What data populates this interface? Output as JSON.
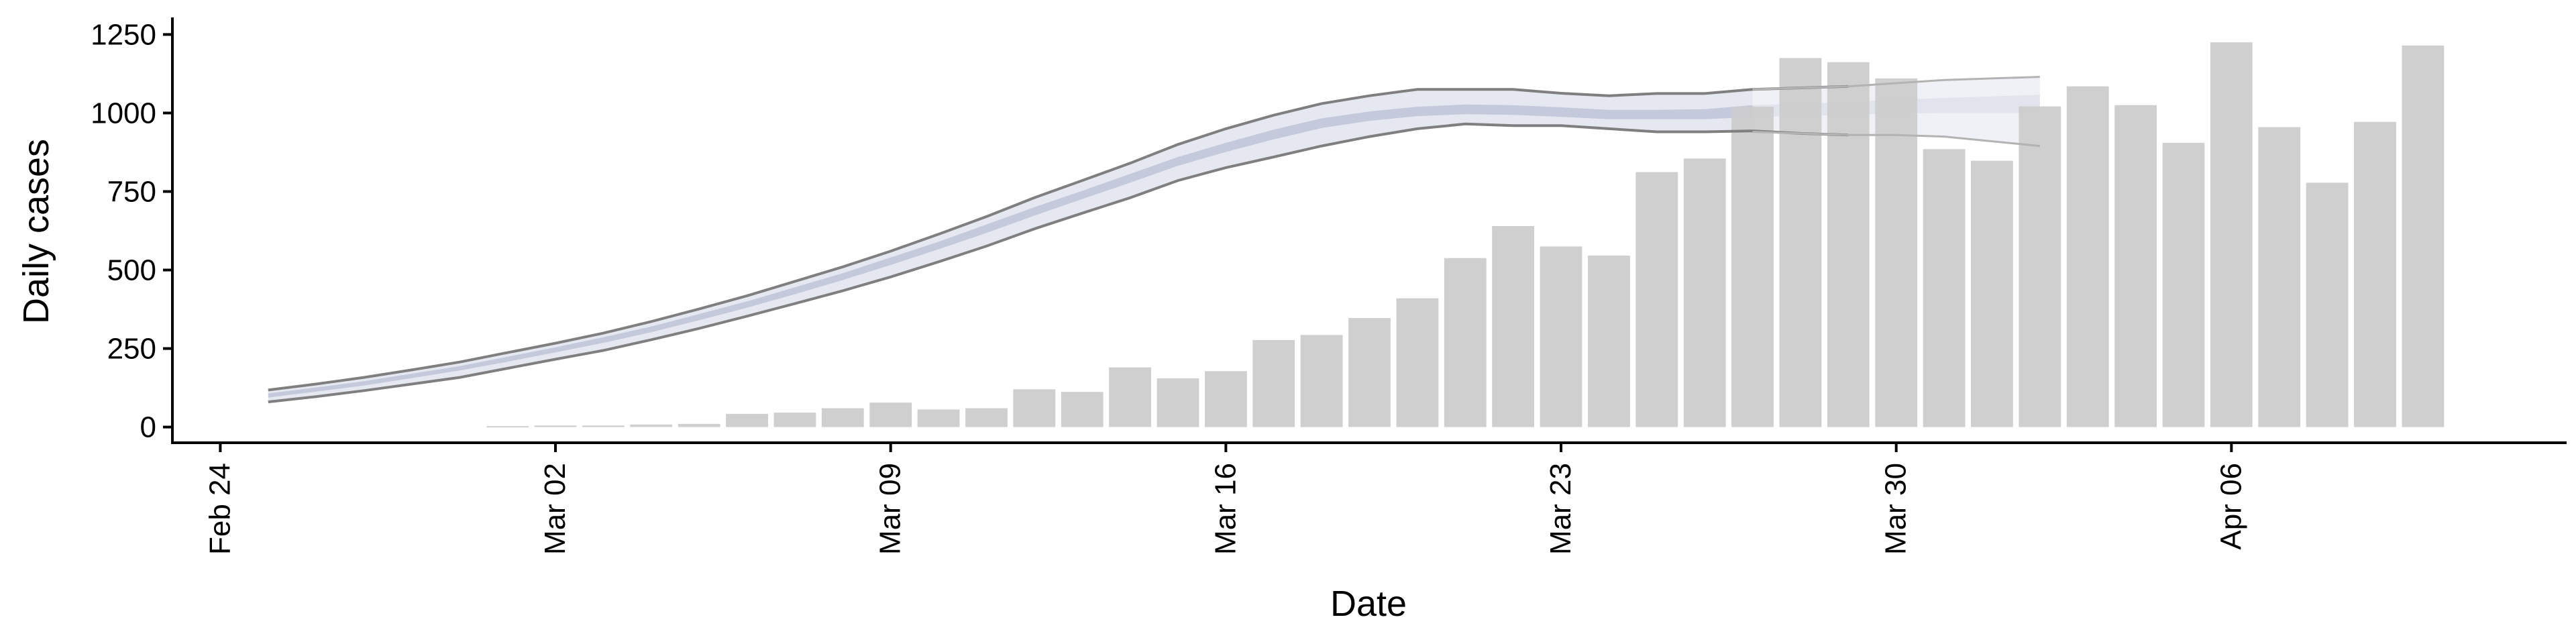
{
  "chart_data": {
    "type": "bar",
    "title": "",
    "xlabel": "Date",
    "ylabel": "Daily cases",
    "x_start_date": "2020-02-24",
    "xlim": [
      "2024-02-23",
      "2024-04-13"
    ],
    "ylim": [
      -50,
      1300
    ],
    "yticks": [
      0,
      250,
      500,
      750,
      1000,
      1250
    ],
    "xticks": [
      {
        "date": "2024-02-24",
        "label": "Feb 24"
      },
      {
        "date": "2024-03-02",
        "label": "Mar 02"
      },
      {
        "date": "2024-03-09",
        "label": "Mar 09"
      },
      {
        "date": "2024-03-16",
        "label": "Mar 16"
      },
      {
        "date": "2024-03-23",
        "label": "Mar 23"
      },
      {
        "date": "2024-03-30",
        "label": "Mar 30"
      },
      {
        "date": "2024-04-06",
        "label": "Apr 06"
      }
    ],
    "grid": false,
    "legend": "none",
    "colors": {
      "bars": "#cccccc",
      "band_outer": "#e6e8f1",
      "band_inner": "#c4c9dc",
      "bound_lines": "#7f7f7f",
      "forecast_outer": "#f0f1f6",
      "forecast_inner": "#e1e3ed",
      "forecast_lines": "#b3b3b3",
      "axis": "#000000"
    },
    "bars": {
      "start_date": "2024-03-01",
      "values": [
        3,
        5,
        5,
        8,
        10,
        42,
        46,
        60,
        78,
        56,
        60,
        120,
        112,
        190,
        155,
        178,
        277,
        293,
        347,
        410,
        538,
        640,
        575,
        546,
        812,
        855,
        1020,
        1175,
        1162,
        1110,
        885,
        848,
        1021,
        1085,
        1025,
        905,
        1225,
        955,
        778,
        972,
        1215
      ]
    },
    "estimate": {
      "start_date": "2024-02-25",
      "upper": [
        118,
        137,
        158,
        182,
        207,
        237,
        267,
        299,
        336,
        376,
        418,
        464,
        510,
        560,
        614,
        670,
        730,
        785,
        840,
        900,
        950,
        993,
        1030,
        1055,
        1075,
        1075,
        1075,
        1063,
        1055,
        1062,
        1062,
        1075,
        1080,
        1085
      ],
      "lower": [
        80,
        97,
        116,
        137,
        158,
        187,
        216,
        244,
        278,
        314,
        353,
        393,
        434,
        478,
        526,
        576,
        631,
        681,
        730,
        785,
        826,
        860,
        895,
        925,
        950,
        965,
        960,
        960,
        950,
        940,
        940,
        943,
        935,
        930
      ],
      "inner_upper": [
        107,
        126,
        146,
        170,
        194,
        224,
        254,
        286,
        320,
        360,
        400,
        445,
        490,
        540,
        590,
        645,
        700,
        752,
        806,
        860,
        905,
        947,
        983,
        1005,
        1020,
        1027,
        1025,
        1018,
        1010,
        1010,
        1012,
        1025,
        1030,
        1035
      ],
      "inner_lower": [
        94,
        113,
        132,
        156,
        180,
        208,
        238,
        268,
        302,
        340,
        380,
        423,
        468,
        516,
        566,
        618,
        673,
        726,
        778,
        832,
        876,
        916,
        952,
        975,
        990,
        996,
        994,
        988,
        980,
        980,
        980,
        987,
        990,
        995
      ]
    },
    "forecast": {
      "start_date": "2024-03-27",
      "upper": [
        1075,
        1080,
        1085,
        1095,
        1105,
        1110,
        1115
      ],
      "lower": [
        940,
        935,
        930,
        930,
        925,
        910,
        895
      ],
      "inner_upper": [
        1025,
        1030,
        1035,
        1042,
        1048,
        1053,
        1058
      ],
      "inner_lower": [
        987,
        990,
        995,
        998,
        1000,
        1000,
        1000
      ]
    }
  }
}
